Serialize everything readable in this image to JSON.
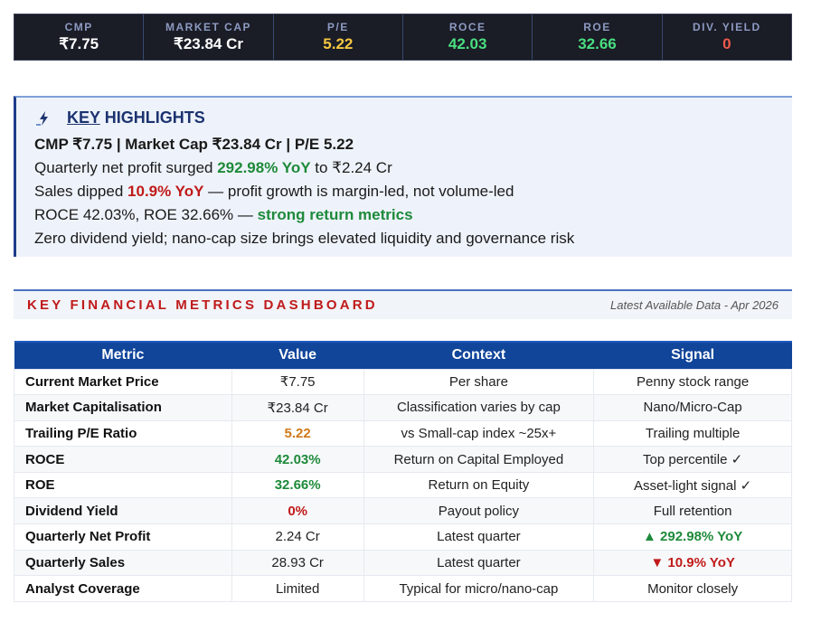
{
  "metrics_bar": [
    {
      "label": "CMP",
      "value": "₹7.75",
      "color": "#ffffff"
    },
    {
      "label": "MARKET CAP",
      "value": "₹23.84 Cr",
      "color": "#ffffff"
    },
    {
      "label": "P/E",
      "value": "5.22",
      "color": "#f5c842"
    },
    {
      "label": "ROCE",
      "value": "42.03",
      "color": "#4ade80"
    },
    {
      "label": "ROE",
      "value": "32.66",
      "color": "#4ade80"
    },
    {
      "label": "DIV. YIELD",
      "value": "0",
      "color": "#f05a4a"
    }
  ],
  "highlights": {
    "title_key": "KEY",
    "title_rest": "HIGHLIGHTS",
    "line1": "CMP ₹7.75  |  Market Cap ₹23.84 Cr  |  P/E 5.22",
    "line2_a": "Quarterly net profit surged ",
    "line2_b": "292.98% YoY",
    "line2_c": " to ₹2.24 Cr",
    "line3_a": "Sales dipped ",
    "line3_b": "10.9% YoY",
    "line3_c": " — profit growth is margin-led, not volume-led",
    "line4_a": "ROCE 42.03%, ROE 32.66% — ",
    "line4_b": "strong return metrics",
    "line5": "Zero dividend yield; nano-cap size brings elevated liquidity and governance risk"
  },
  "dashboard": {
    "title": "KEY FINANCIAL METRICS DASHBOARD",
    "subtitle": "Latest Available Data - Apr 2026"
  },
  "table": {
    "headers": [
      "Metric",
      "Value",
      "Context",
      "Signal"
    ],
    "rows": [
      {
        "metric": "Current Market Price",
        "value": "₹7.75",
        "context": "Per share",
        "signal": "Penny stock range",
        "vcolor": "",
        "scolor": ""
      },
      {
        "metric": "Market Capitalisation",
        "value": "₹23.84 Cr",
        "context": "Classification varies by cap",
        "signal": "Nano/Micro-Cap",
        "vcolor": "",
        "scolor": ""
      },
      {
        "metric": "Trailing P/E Ratio",
        "value": "5.22",
        "context": "vs Small-cap index ~25x+",
        "signal": "Trailing multiple",
        "vcolor": "#d07a1a",
        "scolor": ""
      },
      {
        "metric": "ROCE",
        "value": "42.03%",
        "context": "Return on Capital Employed",
        "signal": "Top percentile ✓",
        "vcolor": "#1e8a3a",
        "scolor": ""
      },
      {
        "metric": "ROE",
        "value": "32.66%",
        "context": "Return on Equity",
        "signal": "Asset-light signal ✓",
        "vcolor": "#1e8a3a",
        "scolor": ""
      },
      {
        "metric": "Dividend Yield",
        "value": "0%",
        "context": "Payout policy",
        "signal": "Full retention",
        "vcolor": "#c01a1a",
        "scolor": ""
      },
      {
        "metric": "Quarterly Net Profit",
        "value": "2.24 Cr",
        "context": "Latest quarter",
        "signal": "▲ 292.98% YoY",
        "vcolor": "",
        "scolor": "#1e8a3a"
      },
      {
        "metric": "Quarterly Sales",
        "value": "28.93 Cr",
        "context": "Latest quarter",
        "signal": "▼ 10.9% YoY",
        "vcolor": "",
        "scolor": "#c01a1a"
      },
      {
        "metric": "Analyst Coverage",
        "value": "Limited",
        "context": "Typical for micro/nano-cap",
        "signal": "Monitor closely",
        "vcolor": "",
        "scolor": ""
      }
    ]
  }
}
